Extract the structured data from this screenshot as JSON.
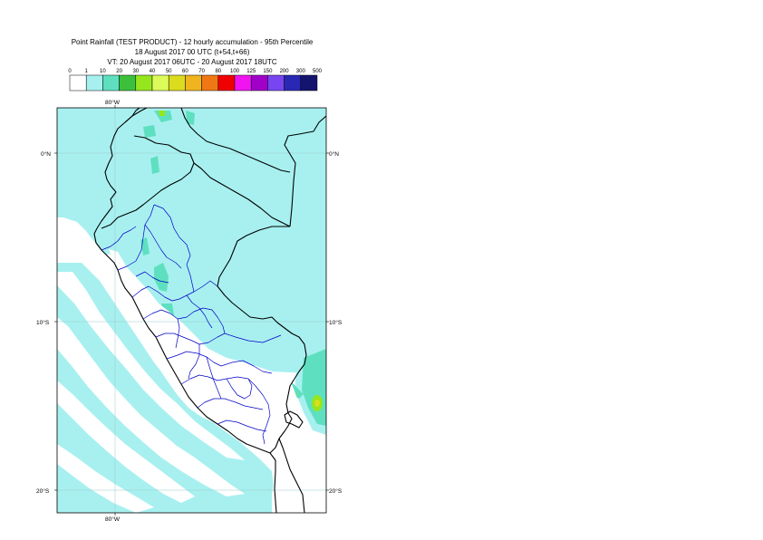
{
  "title": {
    "line1": "Point Rainfall (TEST PRODUCT) - 12 hourly accumulation - 95th Percentile",
    "line2": "18 August 2017 00 UTC (t+54,t+66)",
    "line3": "VT: 20 August 2017 06UTC - 20 August 2017 18UTC"
  },
  "legend": {
    "thresholds": [
      "0",
      "1",
      "10",
      "20",
      "30",
      "40",
      "50",
      "60",
      "70",
      "80",
      "100",
      "125",
      "150",
      "200",
      "300",
      "500"
    ],
    "colors": [
      "#ffffff",
      "#a8f0f0",
      "#5ee0c0",
      "#3cc03c",
      "#96e61e",
      "#dcfa5a",
      "#dcdc1e",
      "#f0b41e",
      "#f07814",
      "#f00000",
      "#f014f0",
      "#a000c8",
      "#7846f0",
      "#2828b4",
      "#14146e"
    ]
  },
  "map": {
    "lon_labels": [
      "80°W",
      "80°W"
    ],
    "lat_labels": [
      "0°N",
      "0°N",
      "10°S",
      "10°S",
      "20°S",
      "20°S"
    ],
    "field_color_light": "#a8f0f0",
    "field_color_mid": "#5ee0c0",
    "field_color_high": "#96e61e",
    "field_color_peak": "#dcdc1e",
    "land_dry_color": "#ffffff",
    "coast_color": "#000000",
    "region_border_color": "#0000c8"
  }
}
